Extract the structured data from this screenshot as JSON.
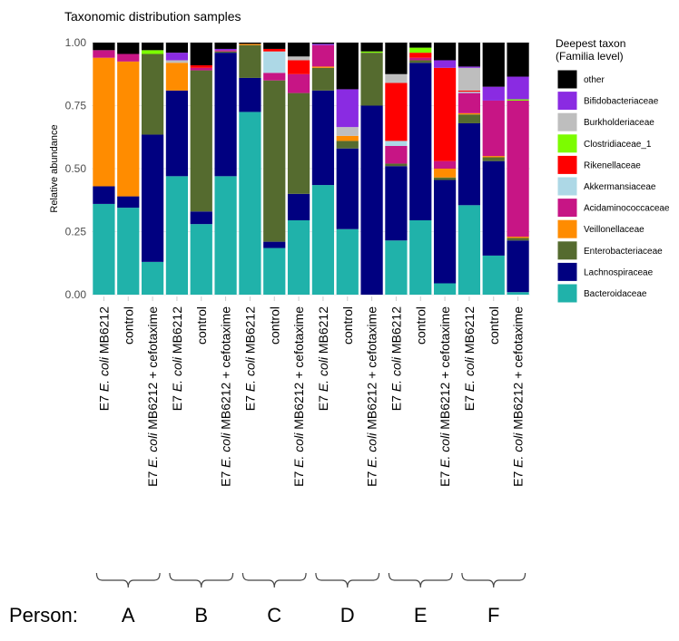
{
  "chart_data": {
    "type": "bar",
    "stacked": true,
    "title": "Taxonomic distribution  samples",
    "xlabel": "",
    "ylabel": "Relative abundance",
    "ylim": [
      0,
      1
    ],
    "y_ticks": [
      "0.00",
      "0.25",
      "0.50",
      "0.75",
      "1.00"
    ],
    "grid": true,
    "legend_position": "right",
    "legend_title": [
      "Deepest taxon",
      "(Familia level)"
    ],
    "categories": [
      "E7 E. coli MB6212",
      "control",
      "E7 E. coli MB6212 + cefotaxime",
      "E7 E. coli MB6212",
      "control",
      "E7 E. coli MB6212 + cefotaxime",
      "E7 E. coli MB6212",
      "control",
      "E7 E. coli MB6212 + cefotaxime",
      "E7 E. coli MB6212",
      "control",
      "E7 E. coli MB6212 + cefotaxime",
      "E7 E. coli MB6212",
      "control",
      "E7 E. coli MB6212 + cefotaxime",
      "E7 E. coli MB6212",
      "control",
      "E7 E. coli MB6212 + cefotaxime"
    ],
    "series": [
      {
        "name": "Bacteroidaceae",
        "color": "#20B2AA",
        "values": [
          0.36,
          0.345,
          0.13,
          0.47,
          0.28,
          0.47,
          0.725,
          0.185,
          0.295,
          0.435,
          0.26,
          0,
          0.215,
          0.295,
          0.045,
          0.355,
          0.155,
          0.01
        ]
      },
      {
        "name": "Lachnospiraceae",
        "color": "#000080",
        "values": [
          0.07,
          0.045,
          0.505,
          0.34,
          0.05,
          0.49,
          0.135,
          0.025,
          0.105,
          0.375,
          0.32,
          0.75,
          0.295,
          0.625,
          0.41,
          0.325,
          0.375,
          0.205
        ]
      },
      {
        "name": "Enterobacteriaceae",
        "color": "#556B2F",
        "values": [
          0,
          0,
          0.32,
          0,
          0.56,
          0.005,
          0.13,
          0.64,
          0.4,
          0.09,
          0.03,
          0.21,
          0.01,
          0.01,
          0.01,
          0.035,
          0.015,
          0.01
        ]
      },
      {
        "name": "Veillonellaceae",
        "color": "#FF8C00",
        "values": [
          0.51,
          0.535,
          0,
          0.11,
          0,
          0,
          0.005,
          0,
          0,
          0.005,
          0.02,
          0,
          0,
          0,
          0.035,
          0.005,
          0.005,
          0.005
        ]
      },
      {
        "name": "Acidaminococcaceae",
        "color": "#C71585",
        "values": [
          0.03,
          0.03,
          0,
          0,
          0.01,
          0.005,
          0,
          0.03,
          0.075,
          0.085,
          0,
          0,
          0.07,
          0.01,
          0.03,
          0.08,
          0.22,
          0.54
        ]
      },
      {
        "name": "Akkermansiaceae",
        "color": "#ADD8E6",
        "values": [
          0,
          0,
          0,
          0,
          0,
          0,
          0,
          0.085,
          0,
          0,
          0,
          0,
          0.02,
          0,
          0,
          0.005,
          0,
          0
        ]
      },
      {
        "name": "Rikenellaceae",
        "color": "#FF0000",
        "values": [
          0,
          0,
          0,
          0,
          0.01,
          0,
          0,
          0.01,
          0.055,
          0,
          0,
          0,
          0.23,
          0.02,
          0.37,
          0.005,
          0,
          0
        ]
      },
      {
        "name": "Clostridiaceae_1",
        "color": "#7CFC00",
        "values": [
          0,
          0,
          0.015,
          0,
          0,
          0,
          0,
          0,
          0,
          0,
          0,
          0.005,
          0,
          0.02,
          0,
          0,
          0,
          0.005
        ]
      },
      {
        "name": "Burkholderiaceae",
        "color": "#BEBEBE",
        "values": [
          0,
          0,
          0,
          0.01,
          0,
          0,
          0,
          0,
          0.015,
          0,
          0.035,
          0,
          0.035,
          0,
          0,
          0.09,
          0,
          0
        ]
      },
      {
        "name": "Bifidobacteriaceae",
        "color": "#8A2BE2",
        "values": [
          0,
          0,
          0,
          0.03,
          0,
          0.005,
          0,
          0,
          0,
          0.005,
          0.15,
          0,
          0,
          0,
          0.03,
          0.005,
          0.055,
          0.09
        ]
      },
      {
        "name": "other",
        "color": "#000000",
        "values": [
          0.03,
          0.045,
          0.03,
          0.04,
          0.09,
          0.025,
          0.005,
          0.025,
          0.055,
          0.005,
          0.185,
          0.035,
          0.125,
          0.02,
          0.07,
          0.095,
          0.175,
          0.135
        ]
      }
    ]
  },
  "groups": {
    "label": "Person:",
    "names": [
      "A",
      "B",
      "C",
      "D",
      "E",
      "F"
    ]
  }
}
